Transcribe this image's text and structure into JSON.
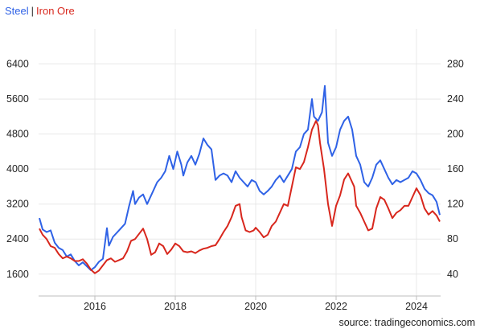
{
  "legend": {
    "separator": "|",
    "items": [
      {
        "label": "Steel",
        "color": "#2f62e6"
      },
      {
        "label": "Iron Ore",
        "color": "#d8271d"
      }
    ]
  },
  "source_text": "source: tradingeconomics.com",
  "chart_data": {
    "type": "line",
    "grid": true,
    "xlim": [
      2014.6,
      2024.6
    ],
    "x_ticks": [
      "2016",
      "2018",
      "2020",
      "2022",
      "2024"
    ],
    "y_left": {
      "ticks": [
        "1600",
        "2400",
        "3200",
        "4000",
        "4800",
        "5600",
        "6400"
      ],
      "ylim": [
        1100,
        7200
      ]
    },
    "y_right": {
      "ticks": [
        "40",
        "80",
        "120",
        "160",
        "200",
        "240",
        "280"
      ],
      "ylim": [
        15,
        320
      ]
    },
    "series": [
      {
        "name": "Steel",
        "axis": "left",
        "color": "#2f62e6",
        "points": [
          [
            2014.62,
            2880
          ],
          [
            2014.7,
            2620
          ],
          [
            2014.8,
            2560
          ],
          [
            2014.9,
            2600
          ],
          [
            2015.0,
            2320
          ],
          [
            2015.1,
            2200
          ],
          [
            2015.2,
            2150
          ],
          [
            2015.3,
            2000
          ],
          [
            2015.4,
            2050
          ],
          [
            2015.5,
            1900
          ],
          [
            2015.6,
            1800
          ],
          [
            2015.7,
            1870
          ],
          [
            2015.8,
            1780
          ],
          [
            2015.9,
            1690
          ],
          [
            2016.0,
            1760
          ],
          [
            2016.1,
            1880
          ],
          [
            2016.2,
            1950
          ],
          [
            2016.3,
            2650
          ],
          [
            2016.35,
            2250
          ],
          [
            2016.45,
            2450
          ],
          [
            2016.6,
            2600
          ],
          [
            2016.75,
            2750
          ],
          [
            2016.85,
            3150
          ],
          [
            2016.95,
            3500
          ],
          [
            2017.0,
            3200
          ],
          [
            2017.1,
            3350
          ],
          [
            2017.2,
            3420
          ],
          [
            2017.3,
            3200
          ],
          [
            2017.45,
            3500
          ],
          [
            2017.55,
            3700
          ],
          [
            2017.65,
            3800
          ],
          [
            2017.75,
            3950
          ],
          [
            2017.85,
            4300
          ],
          [
            2017.95,
            4000
          ],
          [
            2018.05,
            4400
          ],
          [
            2018.15,
            4100
          ],
          [
            2018.2,
            3850
          ],
          [
            2018.3,
            4150
          ],
          [
            2018.4,
            4300
          ],
          [
            2018.5,
            4100
          ],
          [
            2018.6,
            4350
          ],
          [
            2018.7,
            4700
          ],
          [
            2018.8,
            4550
          ],
          [
            2018.9,
            4450
          ],
          [
            2019.0,
            3750
          ],
          [
            2019.1,
            3850
          ],
          [
            2019.2,
            3900
          ],
          [
            2019.3,
            3850
          ],
          [
            2019.4,
            3700
          ],
          [
            2019.5,
            3950
          ],
          [
            2019.6,
            3800
          ],
          [
            2019.7,
            3700
          ],
          [
            2019.8,
            3600
          ],
          [
            2019.9,
            3750
          ],
          [
            2020.0,
            3700
          ],
          [
            2020.1,
            3500
          ],
          [
            2020.2,
            3420
          ],
          [
            2020.3,
            3500
          ],
          [
            2020.4,
            3600
          ],
          [
            2020.5,
            3750
          ],
          [
            2020.6,
            3850
          ],
          [
            2020.7,
            3700
          ],
          [
            2020.8,
            3850
          ],
          [
            2020.9,
            4000
          ],
          [
            2021.0,
            4400
          ],
          [
            2021.1,
            4500
          ],
          [
            2021.2,
            4800
          ],
          [
            2021.3,
            4900
          ],
          [
            2021.4,
            5600
          ],
          [
            2021.45,
            5200
          ],
          [
            2021.55,
            5100
          ],
          [
            2021.65,
            5300
          ],
          [
            2021.72,
            5900
          ],
          [
            2021.8,
            4600
          ],
          [
            2021.9,
            4300
          ],
          [
            2022.0,
            4500
          ],
          [
            2022.1,
            4900
          ],
          [
            2022.2,
            5100
          ],
          [
            2022.3,
            5200
          ],
          [
            2022.4,
            4900
          ],
          [
            2022.5,
            4300
          ],
          [
            2022.6,
            4100
          ],
          [
            2022.7,
            3700
          ],
          [
            2022.8,
            3600
          ],
          [
            2022.9,
            3800
          ],
          [
            2023.0,
            4100
          ],
          [
            2023.1,
            4200
          ],
          [
            2023.2,
            4000
          ],
          [
            2023.3,
            3800
          ],
          [
            2023.4,
            3650
          ],
          [
            2023.5,
            3750
          ],
          [
            2023.6,
            3700
          ],
          [
            2023.7,
            3750
          ],
          [
            2023.8,
            3800
          ],
          [
            2023.9,
            3950
          ],
          [
            2024.0,
            3900
          ],
          [
            2024.1,
            3750
          ],
          [
            2024.2,
            3550
          ],
          [
            2024.3,
            3450
          ],
          [
            2024.4,
            3400
          ],
          [
            2024.5,
            3250
          ],
          [
            2024.58,
            2950
          ]
        ]
      },
      {
        "name": "Iron Ore",
        "axis": "right",
        "color": "#d8271d",
        "points": [
          [
            2014.62,
            92
          ],
          [
            2014.7,
            85
          ],
          [
            2014.8,
            80
          ],
          [
            2014.9,
            72
          ],
          [
            2015.0,
            70
          ],
          [
            2015.1,
            63
          ],
          [
            2015.2,
            58
          ],
          [
            2015.3,
            60
          ],
          [
            2015.4,
            58
          ],
          [
            2015.5,
            55
          ],
          [
            2015.6,
            55
          ],
          [
            2015.7,
            57
          ],
          [
            2015.8,
            52
          ],
          [
            2015.9,
            45
          ],
          [
            2016.0,
            41
          ],
          [
            2016.1,
            44
          ],
          [
            2016.2,
            50
          ],
          [
            2016.3,
            56
          ],
          [
            2016.4,
            58
          ],
          [
            2016.5,
            54
          ],
          [
            2016.6,
            56
          ],
          [
            2016.7,
            58
          ],
          [
            2016.8,
            66
          ],
          [
            2016.9,
            78
          ],
          [
            2017.0,
            80
          ],
          [
            2017.1,
            86
          ],
          [
            2017.2,
            92
          ],
          [
            2017.3,
            80
          ],
          [
            2017.4,
            62
          ],
          [
            2017.5,
            65
          ],
          [
            2017.6,
            75
          ],
          [
            2017.7,
            72
          ],
          [
            2017.8,
            63
          ],
          [
            2017.9,
            68
          ],
          [
            2018.0,
            75
          ],
          [
            2018.1,
            72
          ],
          [
            2018.2,
            66
          ],
          [
            2018.3,
            65
          ],
          [
            2018.4,
            66
          ],
          [
            2018.5,
            64
          ],
          [
            2018.6,
            67
          ],
          [
            2018.7,
            69
          ],
          [
            2018.8,
            70
          ],
          [
            2018.9,
            72
          ],
          [
            2019.0,
            73
          ],
          [
            2019.1,
            80
          ],
          [
            2019.2,
            88
          ],
          [
            2019.3,
            95
          ],
          [
            2019.4,
            105
          ],
          [
            2019.5,
            118
          ],
          [
            2019.6,
            120
          ],
          [
            2019.65,
            105
          ],
          [
            2019.75,
            90
          ],
          [
            2019.85,
            88
          ],
          [
            2019.95,
            90
          ],
          [
            2020.0,
            93
          ],
          [
            2020.1,
            88
          ],
          [
            2020.2,
            82
          ],
          [
            2020.3,
            85
          ],
          [
            2020.4,
            95
          ],
          [
            2020.5,
            100
          ],
          [
            2020.6,
            110
          ],
          [
            2020.7,
            120
          ],
          [
            2020.8,
            118
          ],
          [
            2020.9,
            140
          ],
          [
            2021.0,
            162
          ],
          [
            2021.1,
            160
          ],
          [
            2021.2,
            168
          ],
          [
            2021.3,
            185
          ],
          [
            2021.4,
            205
          ],
          [
            2021.5,
            215
          ],
          [
            2021.55,
            210
          ],
          [
            2021.6,
            190
          ],
          [
            2021.7,
            160
          ],
          [
            2021.8,
            120
          ],
          [
            2021.9,
            95
          ],
          [
            2022.0,
            118
          ],
          [
            2022.1,
            130
          ],
          [
            2022.2,
            148
          ],
          [
            2022.3,
            155
          ],
          [
            2022.35,
            150
          ],
          [
            2022.45,
            140
          ],
          [
            2022.5,
            118
          ],
          [
            2022.6,
            110
          ],
          [
            2022.7,
            100
          ],
          [
            2022.8,
            90
          ],
          [
            2022.9,
            92
          ],
          [
            2023.0,
            115
          ],
          [
            2023.1,
            128
          ],
          [
            2023.2,
            125
          ],
          [
            2023.3,
            115
          ],
          [
            2023.4,
            104
          ],
          [
            2023.5,
            110
          ],
          [
            2023.6,
            113
          ],
          [
            2023.7,
            118
          ],
          [
            2023.8,
            118
          ],
          [
            2023.9,
            128
          ],
          [
            2024.0,
            138
          ],
          [
            2024.1,
            130
          ],
          [
            2024.2,
            115
          ],
          [
            2024.3,
            108
          ],
          [
            2024.4,
            112
          ],
          [
            2024.5,
            107
          ],
          [
            2024.58,
            100
          ]
        ]
      }
    ]
  }
}
